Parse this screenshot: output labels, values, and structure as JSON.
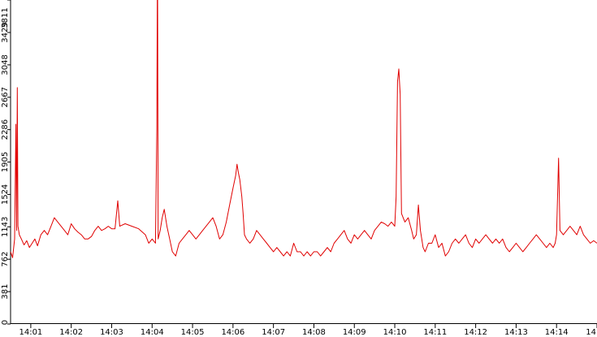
{
  "chart_data": {
    "type": "line",
    "title": "",
    "xlabel": "",
    "ylabel": "",
    "ylim": [
      0,
      3811
    ],
    "yticks": [
      0,
      381,
      762,
      1143,
      1524,
      1905,
      2286,
      2667,
      3048,
      3429,
      3811
    ],
    "xlim": [
      "14:00:30",
      "14:15:00"
    ],
    "xticks": [
      "14:01",
      "14:02",
      "14:03",
      "14:04",
      "14:05",
      "14:06",
      "14:07",
      "14:08",
      "14:09",
      "14:10",
      "14:11",
      "14:12",
      "14:13",
      "14:14",
      "14"
    ],
    "grid": false,
    "legend": "none",
    "series": [
      {
        "name": "",
        "color": "#e00000",
        "points": [
          [
            "14:00:30",
            850
          ],
          [
            "14:00:33",
            780
          ],
          [
            "14:00:36",
            1000
          ],
          [
            "14:00:38",
            2350
          ],
          [
            "14:00:39",
            1100
          ],
          [
            "14:00:40",
            2780
          ],
          [
            "14:00:41",
            1150
          ],
          [
            "14:00:43",
            1050
          ],
          [
            "14:00:46",
            1000
          ],
          [
            "14:00:50",
            930
          ],
          [
            "14:00:54",
            980
          ],
          [
            "14:00:58",
            900
          ],
          [
            "14:01:02",
            950
          ],
          [
            "14:01:06",
            1000
          ],
          [
            "14:01:10",
            920
          ],
          [
            "14:01:15",
            1050
          ],
          [
            "14:01:20",
            1100
          ],
          [
            "14:01:25",
            1050
          ],
          [
            "14:01:30",
            1150
          ],
          [
            "14:01:35",
            1250
          ],
          [
            "14:01:40",
            1200
          ],
          [
            "14:01:45",
            1150
          ],
          [
            "14:01:50",
            1100
          ],
          [
            "14:01:55",
            1050
          ],
          [
            "14:02:00",
            1180
          ],
          [
            "14:02:05",
            1120
          ],
          [
            "14:02:10",
            1080
          ],
          [
            "14:02:15",
            1050
          ],
          [
            "14:02:20",
            1000
          ],
          [
            "14:02:25",
            1000
          ],
          [
            "14:02:30",
            1030
          ],
          [
            "14:02:35",
            1100
          ],
          [
            "14:02:40",
            1150
          ],
          [
            "14:02:45",
            1100
          ],
          [
            "14:02:50",
            1120
          ],
          [
            "14:02:55",
            1150
          ],
          [
            "14:03:00",
            1120
          ],
          [
            "14:03:05",
            1120
          ],
          [
            "14:03:09",
            1450
          ],
          [
            "14:03:12",
            1150
          ],
          [
            "14:03:20",
            1180
          ],
          [
            "14:03:30",
            1150
          ],
          [
            "14:03:40",
            1120
          ],
          [
            "14:03:50",
            1050
          ],
          [
            "14:03:55",
            950
          ],
          [
            "14:04:00",
            1000
          ],
          [
            "14:04:05",
            950
          ],
          [
            "14:04:07",
            2300
          ],
          [
            "14:04:08",
            4500
          ],
          [
            "14:04:09",
            1000
          ],
          [
            "14:04:12",
            1100
          ],
          [
            "14:04:15",
            1250
          ],
          [
            "14:04:18",
            1350
          ],
          [
            "14:04:22",
            1150
          ],
          [
            "14:04:26",
            1000
          ],
          [
            "14:04:30",
            850
          ],
          [
            "14:04:35",
            800
          ],
          [
            "14:04:40",
            950
          ],
          [
            "14:04:45",
            1000
          ],
          [
            "14:04:50",
            1050
          ],
          [
            "14:04:55",
            1100
          ],
          [
            "14:05:00",
            1050
          ],
          [
            "14:05:05",
            1000
          ],
          [
            "14:05:10",
            1050
          ],
          [
            "14:05:15",
            1100
          ],
          [
            "14:05:20",
            1150
          ],
          [
            "14:05:25",
            1200
          ],
          [
            "14:05:30",
            1250
          ],
          [
            "14:05:35",
            1150
          ],
          [
            "14:05:40",
            1000
          ],
          [
            "14:05:45",
            1050
          ],
          [
            "14:05:50",
            1200
          ],
          [
            "14:05:55",
            1400
          ],
          [
            "14:06:00",
            1600
          ],
          [
            "14:06:04",
            1750
          ],
          [
            "14:06:06",
            1880
          ],
          [
            "14:06:08",
            1780
          ],
          [
            "14:06:10",
            1700
          ],
          [
            "14:06:13",
            1500
          ],
          [
            "14:06:15",
            1300
          ],
          [
            "14:06:17",
            1050
          ],
          [
            "14:06:20",
            1000
          ],
          [
            "14:06:25",
            950
          ],
          [
            "14:06:30",
            1000
          ],
          [
            "14:06:35",
            1100
          ],
          [
            "14:06:40",
            1050
          ],
          [
            "14:06:45",
            1000
          ],
          [
            "14:06:50",
            950
          ],
          [
            "14:06:55",
            900
          ],
          [
            "14:07:00",
            850
          ],
          [
            "14:07:05",
            900
          ],
          [
            "14:07:10",
            850
          ],
          [
            "14:07:15",
            800
          ],
          [
            "14:07:20",
            850
          ],
          [
            "14:07:25",
            800
          ],
          [
            "14:07:30",
            950
          ],
          [
            "14:07:35",
            850
          ],
          [
            "14:07:40",
            850
          ],
          [
            "14:07:45",
            800
          ],
          [
            "14:07:50",
            850
          ],
          [
            "14:07:55",
            800
          ],
          [
            "14:08:00",
            850
          ],
          [
            "14:08:05",
            850
          ],
          [
            "14:08:10",
            800
          ],
          [
            "14:08:15",
            850
          ],
          [
            "14:08:20",
            900
          ],
          [
            "14:08:25",
            850
          ],
          [
            "14:08:30",
            950
          ],
          [
            "14:08:35",
            1000
          ],
          [
            "14:08:40",
            1050
          ],
          [
            "14:08:45",
            1100
          ],
          [
            "14:08:50",
            1000
          ],
          [
            "14:08:55",
            950
          ],
          [
            "14:09:00",
            1050
          ],
          [
            "14:09:05",
            1000
          ],
          [
            "14:09:10",
            1050
          ],
          [
            "14:09:15",
            1100
          ],
          [
            "14:09:20",
            1050
          ],
          [
            "14:09:25",
            1000
          ],
          [
            "14:09:30",
            1100
          ],
          [
            "14:09:35",
            1150
          ],
          [
            "14:09:40",
            1200
          ],
          [
            "14:09:45",
            1180
          ],
          [
            "14:09:50",
            1150
          ],
          [
            "14:09:55",
            1200
          ],
          [
            "14:10:00",
            1150
          ],
          [
            "14:10:02",
            1500
          ],
          [
            "14:10:04",
            2850
          ],
          [
            "14:10:06",
            3000
          ],
          [
            "14:10:08",
            2700
          ],
          [
            "14:10:10",
            1300
          ],
          [
            "14:10:15",
            1200
          ],
          [
            "14:10:20",
            1250
          ],
          [
            "14:10:25",
            1100
          ],
          [
            "14:10:28",
            1000
          ],
          [
            "14:10:32",
            1050
          ],
          [
            "14:10:35",
            1400
          ],
          [
            "14:10:38",
            1100
          ],
          [
            "14:10:42",
            900
          ],
          [
            "14:10:45",
            850
          ],
          [
            "14:10:50",
            950
          ],
          [
            "14:10:55",
            950
          ],
          [
            "14:11:00",
            1050
          ],
          [
            "14:11:05",
            900
          ],
          [
            "14:11:10",
            950
          ],
          [
            "14:11:15",
            800
          ],
          [
            "14:11:20",
            850
          ],
          [
            "14:11:25",
            950
          ],
          [
            "14:11:30",
            1000
          ],
          [
            "14:11:35",
            950
          ],
          [
            "14:11:40",
            1000
          ],
          [
            "14:11:45",
            1050
          ],
          [
            "14:11:50",
            950
          ],
          [
            "14:11:55",
            900
          ],
          [
            "14:12:00",
            1000
          ],
          [
            "14:12:05",
            950
          ],
          [
            "14:12:10",
            1000
          ],
          [
            "14:12:15",
            1050
          ],
          [
            "14:12:20",
            1000
          ],
          [
            "14:12:25",
            950
          ],
          [
            "14:12:30",
            1000
          ],
          [
            "14:12:35",
            950
          ],
          [
            "14:12:40",
            1000
          ],
          [
            "14:12:45",
            900
          ],
          [
            "14:12:50",
            850
          ],
          [
            "14:12:55",
            900
          ],
          [
            "14:13:00",
            950
          ],
          [
            "14:13:05",
            900
          ],
          [
            "14:13:10",
            850
          ],
          [
            "14:13:15",
            900
          ],
          [
            "14:13:20",
            950
          ],
          [
            "14:13:25",
            1000
          ],
          [
            "14:13:30",
            1050
          ],
          [
            "14:13:35",
            1000
          ],
          [
            "14:13:40",
            950
          ],
          [
            "14:13:45",
            900
          ],
          [
            "14:13:50",
            950
          ],
          [
            "14:13:55",
            900
          ],
          [
            "14:13:58",
            950
          ],
          [
            "14:14:00",
            1050
          ],
          [
            "14:14:03",
            1950
          ],
          [
            "14:14:05",
            1100
          ],
          [
            "14:14:10",
            1050
          ],
          [
            "14:14:15",
            1100
          ],
          [
            "14:14:20",
            1150
          ],
          [
            "14:14:25",
            1100
          ],
          [
            "14:14:30",
            1050
          ],
          [
            "14:14:35",
            1150
          ],
          [
            "14:14:40",
            1050
          ],
          [
            "14:14:45",
            1000
          ],
          [
            "14:14:50",
            950
          ],
          [
            "14:14:55",
            980
          ],
          [
            "14:15:00",
            950
          ]
        ]
      }
    ]
  }
}
